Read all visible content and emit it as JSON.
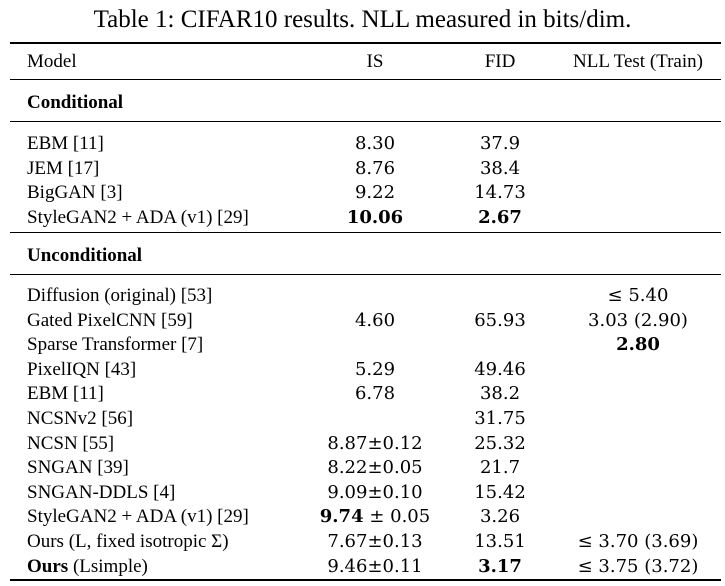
{
  "caption": "Table 1: CIFAR10 results. NLL measured in bits/dim.",
  "header": {
    "model": "Model",
    "is": "IS",
    "fid": "FID",
    "nll": "NLL Test (Train)"
  },
  "sections": {
    "conditional": "Conditional",
    "unconditional": "Unconditional"
  },
  "conditional_rows": [
    {
      "model": "EBM [11]",
      "is": "8.30",
      "fid": "37.9",
      "nll": ""
    },
    {
      "model": "JEM [17]",
      "is": "8.76",
      "fid": "38.4",
      "nll": ""
    },
    {
      "model": "BigGAN [3]",
      "is": "9.22",
      "fid": "14.73",
      "nll": ""
    },
    {
      "model": "StyleGAN2 + ADA (v1) [29]",
      "is": "10.06",
      "fid": "2.67",
      "nll": "",
      "is_bold": true,
      "fid_bold": true
    }
  ],
  "unconditional_rows": [
    {
      "model": "Diffusion (original) [53]",
      "is": "",
      "fid": "",
      "nll": "≤ 5.40"
    },
    {
      "model": "Gated PixelCNN [59]",
      "is": "4.60",
      "fid": "65.93",
      "nll": "3.03 (2.90)"
    },
    {
      "model": "Sparse Transformer [7]",
      "is": "",
      "fid": "",
      "nll": "2.80",
      "nll_bold": true
    },
    {
      "model": "PixelIQN [43]",
      "is": "5.29",
      "fid": "49.46",
      "nll": ""
    },
    {
      "model": "EBM [11]",
      "is": "6.78",
      "fid": "38.2",
      "nll": ""
    },
    {
      "model": "NCSNv2 [56]",
      "is": "",
      "fid": "31.75",
      "nll": ""
    },
    {
      "model": "NCSN [55]",
      "is": "8.87±0.12",
      "fid": "25.32",
      "nll": ""
    },
    {
      "model": "SNGAN [39]",
      "is": "8.22±0.05",
      "fid": "21.7",
      "nll": ""
    },
    {
      "model": "SNGAN-DDLS [4]",
      "is": "9.09±0.10",
      "fid": "15.42",
      "nll": ""
    },
    {
      "model": "StyleGAN2 + ADA (v1) [29]",
      "is": "9.74 ± 0.05",
      "fid": "3.26",
      "nll": "",
      "is_bold_prefix": "9.74",
      "is_rest": " ± 0.05"
    },
    {
      "model": "Ours (L, fixed isotropic Σ)",
      "is": "7.67±0.13",
      "fid": "13.51",
      "nll": "≤ 3.70 (3.69)"
    },
    {
      "model": "Ours (Lsimple)",
      "is": "9.46±0.11",
      "fid": "3.17",
      "nll": "≤ 3.75 (3.72)",
      "fid_bold": true,
      "model_bold_prefix": "Ours"
    }
  ]
}
